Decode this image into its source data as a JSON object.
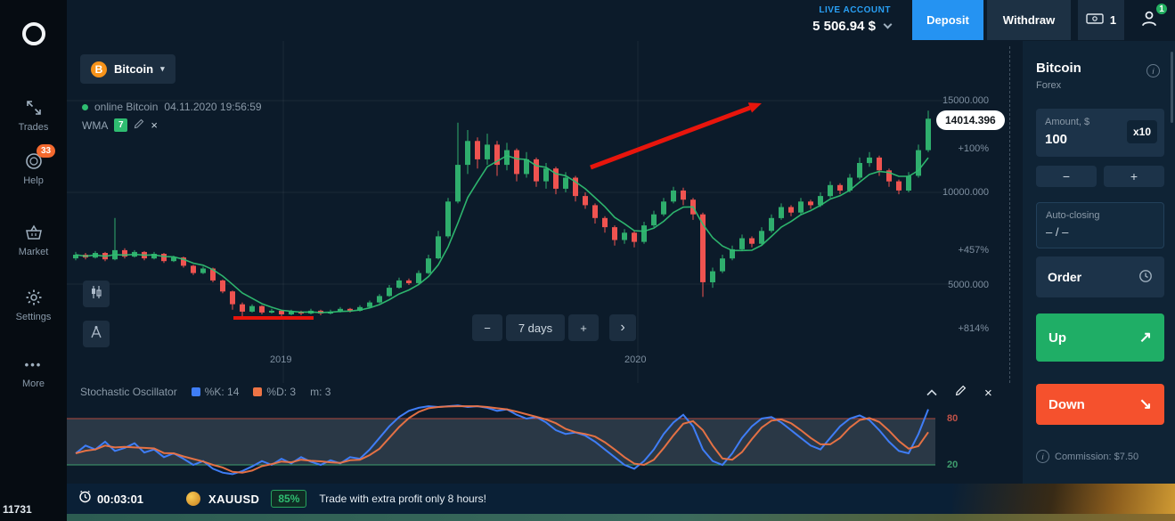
{
  "icons": {
    "close": "×",
    "caret_down": "▾",
    "minus": "−",
    "plus": "+",
    "up_arrow": "↗",
    "down_arrow": "↘",
    "more_dots": "•••",
    "info": "i",
    "next": "›",
    "bitcoin": "B"
  },
  "theme": {
    "bg": "#0c1b2a",
    "sidebar_bg": "#060c12",
    "panel_bg": "#0f2335",
    "card_bg": "#1c3349",
    "accent_blue": "#2593f2",
    "green": "#1fae66",
    "red": "#f5512d",
    "candle_up": "#2fae6d",
    "candle_down": "#ef5350",
    "wma": "#2fbd71",
    "stoch_k": "#3f7df6",
    "stoch_d": "#ee7445",
    "stoch_upper": "#b0493f",
    "stoch_lower": "#3f9e6e",
    "annotation": "#e8150c",
    "live_blue": "#29a0f5"
  },
  "sidebar": {
    "items": [
      {
        "label": "Trades"
      },
      {
        "label": "Help",
        "badge": "33"
      },
      {
        "label": "Market"
      },
      {
        "label": "Settings"
      },
      {
        "label": "More"
      }
    ],
    "footer_id": "11731"
  },
  "topbar": {
    "account_type": "LIVE ACCOUNT",
    "balance": "5 506.94 $",
    "deposit": "Deposit",
    "withdraw": "Withdraw",
    "trades_count": "1",
    "notifications_badge": "1"
  },
  "chart": {
    "symbol": "Bitcoin",
    "status_asset": "online Bitcoin",
    "status_time": "04.11.2020 19:56:59",
    "indicator": "WMA",
    "indicator_period": "7",
    "timeframe_label": "7 days"
  },
  "chart_data": {
    "type": "candlestick",
    "symbol": "Bitcoin",
    "timeframe_per_candle": "7 days",
    "wma_period": 7,
    "price_axis": [
      "15000.000",
      "10000.000",
      "5000.000"
    ],
    "percent_axis": [
      "+100%",
      "+457%",
      "+814%"
    ],
    "x_gridlines": [
      "2019",
      "2020"
    ],
    "current_price": "14014.396",
    "candles": [
      [
        6400,
        6750,
        6300,
        6600
      ],
      [
        6600,
        6700,
        6350,
        6450
      ],
      [
        6450,
        6800,
        6400,
        6700
      ],
      [
        6700,
        6750,
        6250,
        6350
      ],
      [
        6350,
        8600,
        6300,
        6850
      ],
      [
        6850,
        6950,
        6400,
        6500
      ],
      [
        6500,
        6850,
        6450,
        6750
      ],
      [
        6750,
        6800,
        6300,
        6400
      ],
      [
        6400,
        6750,
        6350,
        6650
      ],
      [
        6650,
        6700,
        6150,
        6250
      ],
      [
        6250,
        6550,
        6200,
        6450
      ],
      [
        6450,
        6500,
        5900,
        6000
      ],
      [
        6000,
        6050,
        5500,
        5600
      ],
      [
        5600,
        5950,
        5550,
        5850
      ],
      [
        5850,
        5900,
        5100,
        5200
      ],
      [
        5200,
        5250,
        4500,
        4600
      ],
      [
        4600,
        4650,
        3600,
        3900
      ],
      [
        3900,
        4000,
        3200,
        3500
      ],
      [
        3500,
        3900,
        3450,
        3800
      ],
      [
        3800,
        3850,
        3350,
        3450
      ],
      [
        3450,
        3650,
        3400,
        3550
      ],
      [
        3550,
        3600,
        3250,
        3350
      ],
      [
        3350,
        3600,
        3300,
        3500
      ],
      [
        3500,
        3550,
        3300,
        3400
      ],
      [
        3400,
        3650,
        3350,
        3550
      ],
      [
        3550,
        3600,
        3300,
        3400
      ],
      [
        3400,
        3600,
        3350,
        3500
      ],
      [
        3500,
        3750,
        3450,
        3650
      ],
      [
        3650,
        3700,
        3450,
        3550
      ],
      [
        3550,
        3850,
        3500,
        3750
      ],
      [
        3750,
        4100,
        3700,
        4000
      ],
      [
        4000,
        4450,
        3950,
        4350
      ],
      [
        4350,
        4950,
        4300,
        4800
      ],
      [
        4800,
        5350,
        4750,
        5200
      ],
      [
        5200,
        5300,
        4950,
        5050
      ],
      [
        5050,
        5750,
        5000,
        5600
      ],
      [
        5600,
        6600,
        5550,
        6400
      ],
      [
        6400,
        7900,
        6350,
        7600
      ],
      [
        7600,
        9700,
        7500,
        9500
      ],
      [
        9500,
        13800,
        9400,
        11500
      ],
      [
        11500,
        13400,
        11000,
        12800
      ],
      [
        12800,
        13000,
        11300,
        11800
      ],
      [
        11800,
        13200,
        11500,
        12600
      ],
      [
        12600,
        12800,
        10900,
        11500
      ],
      [
        11500,
        12700,
        11200,
        12300
      ],
      [
        12300,
        12400,
        10600,
        11000
      ],
      [
        11000,
        12200,
        10800,
        11800
      ],
      [
        11800,
        11900,
        10300,
        10600
      ],
      [
        10600,
        11600,
        10200,
        11300
      ],
      [
        11300,
        11400,
        9900,
        10200
      ],
      [
        10200,
        11100,
        10000,
        10800
      ],
      [
        10800,
        10900,
        9500,
        9800
      ],
      [
        9800,
        10000,
        9100,
        9300
      ],
      [
        9300,
        9400,
        8300,
        8600
      ],
      [
        8600,
        8700,
        7800,
        8100
      ],
      [
        8100,
        8200,
        7100,
        7400
      ],
      [
        7400,
        8000,
        7200,
        7800
      ],
      [
        7800,
        7900,
        7000,
        7300
      ],
      [
        7300,
        8400,
        7200,
        8200
      ],
      [
        8200,
        9000,
        8100,
        8800
      ],
      [
        8800,
        9700,
        8700,
        9500
      ],
      [
        9500,
        10300,
        9400,
        10100
      ],
      [
        10100,
        10250,
        9300,
        9600
      ],
      [
        9600,
        9700,
        8500,
        8800
      ],
      [
        8800,
        8900,
        4300,
        5100
      ],
      [
        5100,
        5900,
        4800,
        5700
      ],
      [
        5700,
        6600,
        5600,
        6400
      ],
      [
        6400,
        7100,
        6300,
        6900
      ],
      [
        6900,
        7700,
        6800,
        7500
      ],
      [
        7500,
        7600,
        7000,
        7200
      ],
      [
        7200,
        8100,
        7100,
        7900
      ],
      [
        7900,
        8800,
        7800,
        8600
      ],
      [
        8600,
        9400,
        8500,
        9200
      ],
      [
        9200,
        9300,
        8700,
        8900
      ],
      [
        8900,
        9700,
        8800,
        9500
      ],
      [
        9500,
        9600,
        9100,
        9300
      ],
      [
        9300,
        10000,
        9200,
        9800
      ],
      [
        9800,
        10600,
        9700,
        10400
      ],
      [
        10400,
        10500,
        9900,
        10100
      ],
      [
        10100,
        11000,
        10000,
        10800
      ],
      [
        10800,
        11900,
        10700,
        11600
      ],
      [
        11600,
        12200,
        11400,
        11900
      ],
      [
        11900,
        12000,
        10900,
        11200
      ],
      [
        11200,
        11300,
        10300,
        10600
      ],
      [
        10600,
        10700,
        9900,
        10100
      ],
      [
        10100,
        11100,
        10000,
        10900
      ],
      [
        10900,
        12600,
        10800,
        12300
      ],
      [
        12300,
        14450,
        12200,
        14014
      ]
    ],
    "stochastic": {
      "k_period": 14,
      "d_period": 3,
      "smooth": 3,
      "upper": 80,
      "lower": 20,
      "upper_label": "80",
      "lower_label": "20",
      "k_values": [
        35,
        45,
        40,
        50,
        38,
        42,
        48,
        36,
        40,
        30,
        35,
        28,
        20,
        25,
        15,
        10,
        8,
        12,
        18,
        25,
        20,
        28,
        22,
        30,
        24,
        20,
        26,
        22,
        30,
        28,
        40,
        55,
        70,
        82,
        90,
        94,
        96,
        95,
        96,
        97,
        95,
        96,
        94,
        90,
        92,
        85,
        80,
        82,
        75,
        65,
        60,
        62,
        58,
        50,
        40,
        30,
        20,
        15,
        25,
        40,
        60,
        75,
        85,
        70,
        40,
        25,
        20,
        35,
        55,
        70,
        80,
        82,
        75,
        65,
        55,
        45,
        40,
        55,
        70,
        80,
        84,
        78,
        65,
        50,
        38,
        35,
        60,
        92
      ]
    }
  },
  "stochastic_panel": {
    "title": "Stochastic Oscillator",
    "k_label": "%K: 14",
    "d_label": "%D: 3",
    "m_label": "m: 3"
  },
  "banner": {
    "timer": "00:03:01",
    "asset": "XAUUSD",
    "profit": "85%",
    "message": "Trade with extra profit only 8 hours!"
  },
  "trade_panel": {
    "asset_name": "Bitcoin",
    "asset_type": "Forex",
    "amount_label": "Amount, $",
    "amount_value": "100",
    "multiplier": "x10",
    "autoclose_label": "Auto-closing",
    "autoclose_value": "– / –",
    "order_label": "Order",
    "up_label": "Up",
    "down_label": "Down",
    "commission": "Commission: $7.50"
  }
}
